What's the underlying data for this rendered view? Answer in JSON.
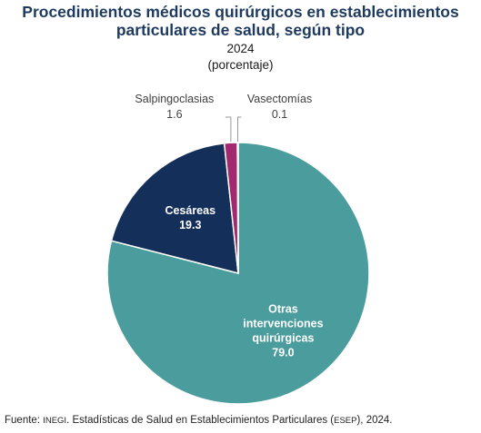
{
  "header": {
    "title_line1": "Procedimientos médicos quirúrgicos en establecimientos",
    "title_line2": "particulares de salud, según tipo",
    "year": "2024",
    "unit": "(porcentaje)"
  },
  "chart_data": {
    "type": "pie",
    "title": "Procedimientos médicos quirúrgicos en establecimientos particulares de salud, según tipo",
    "subtitle": "2024",
    "unit_label": "(porcentaje)",
    "slices": [
      {
        "label": "Otras intervenciones quirúrgicas",
        "label_lines": [
          "Otras",
          "intervenciones",
          "quirúrgicas"
        ],
        "value": 79.0,
        "value_text": "79.0",
        "color": "#4b9c9c",
        "text_color": "#ffffff"
      },
      {
        "label": "Cesáreas",
        "label_lines": [
          "Cesáreas"
        ],
        "value": 19.3,
        "value_text": "19.3",
        "color": "#14305a",
        "text_color": "#ffffff"
      },
      {
        "label": "Salpingoclasias",
        "label_lines": [
          "Salpingoclasias"
        ],
        "value": 1.6,
        "value_text": "1.6",
        "color": "#a3296f",
        "text_color": "#404040"
      },
      {
        "label": "Vasectomías",
        "label_lines": [
          "Vasectomías"
        ],
        "value": 0.1,
        "value_text": "0.1",
        "color": "#c8c8c8",
        "text_color": "#404040"
      }
    ]
  },
  "footer": {
    "prefix": "Fuente:",
    "org": "INEGI",
    "text": ". Estadísticas de Salud en Establecimientos Particulares (",
    "abbr": "ESEP",
    "suffix": "), 2024."
  }
}
